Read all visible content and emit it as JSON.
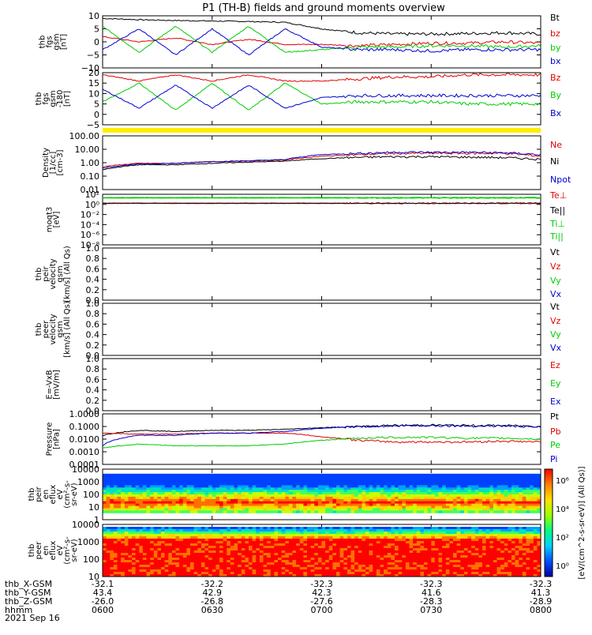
{
  "title": "P1 (TH-B) fields and ground moments overview",
  "date": "2021 Sep 16",
  "colorbar_label": "[eV/(cm^2-s-sr-eV)] (All Qs)]",
  "colorbar_ticks": [
    "10⁶",
    "10⁴",
    "10²",
    "10⁰"
  ],
  "time_axis": {
    "ticks": [
      "0600",
      "0630",
      "0700",
      "0730",
      "0800"
    ],
    "rows": [
      {
        "label": "thb_X-GSM",
        "values": [
          "-32.1",
          "-32.2",
          "-32.3",
          "-32.3",
          "-32.3"
        ]
      },
      {
        "label": "thb_Y-GSM",
        "values": [
          "43.4",
          "42.9",
          "42.3",
          "41.6",
          "41.3"
        ]
      },
      {
        "label": "thb_Z-GSM",
        "values": [
          "-26.0",
          "-26.8",
          "-27.6",
          "-28.3",
          "-28.9"
        ]
      },
      {
        "label": "hhmm",
        "values": [
          "0600",
          "0630",
          "0700",
          "0730",
          "0800"
        ]
      }
    ]
  },
  "chart_data": [
    {
      "type": "line",
      "ylabel": [
        "thb",
        "fgs",
        "gsm",
        "[nT]"
      ],
      "ylim": [
        -10,
        10
      ],
      "yticks": [
        "10",
        "5",
        "0",
        "−5",
        "−10"
      ],
      "x": [
        "0600",
        "0610",
        "0620",
        "0630",
        "0640",
        "0650",
        "0700",
        "0710",
        "0720",
        "0730",
        "0740",
        "0750",
        "0800"
      ],
      "series": [
        {
          "name": "Bt",
          "color": "#000000",
          "values": [
            9,
            8.5,
            8.2,
            8,
            7.8,
            7.5,
            5,
            3.5,
            3,
            3,
            3.2,
            3.5,
            3
          ]
        },
        {
          "name": "bz",
          "color": "#e00000",
          "values": [
            2,
            0,
            1.5,
            -1,
            1,
            -1,
            -1,
            -1.5,
            -1,
            -0.5,
            -0.5,
            0,
            -0.5
          ]
        },
        {
          "name": "by",
          "color": "#00cc00",
          "values": [
            6,
            -4,
            6,
            -4,
            6,
            -4,
            -3,
            -2,
            -2,
            -1.5,
            -1.5,
            -2,
            -1.5
          ]
        },
        {
          "name": "bx",
          "color": "#0000d0",
          "values": [
            -3,
            5,
            -5,
            5,
            -5,
            5,
            -2,
            -3,
            -3,
            -3.5,
            -3,
            -3,
            -3
          ]
        }
      ]
    },
    {
      "type": "line",
      "ylabel": [
        "thb",
        "fgs",
        "gsm",
        "-180",
        "[nT]"
      ],
      "ylim": [
        -5,
        20
      ],
      "yticks": [
        "20",
        "15",
        "10",
        "5",
        "0",
        "−5"
      ],
      "x": [
        "0600",
        "0610",
        "0620",
        "0630",
        "0640",
        "0650",
        "0700",
        "0710",
        "0720",
        "0730",
        "0740",
        "0750",
        "0800"
      ],
      "series": [
        {
          "name": "Bz",
          "color": "#e00000",
          "values": [
            19,
            16,
            19,
            16,
            19,
            16,
            16,
            17,
            18,
            18,
            19,
            19,
            19
          ]
        },
        {
          "name": "By",
          "color": "#00cc00",
          "values": [
            6,
            15,
            2,
            15,
            2,
            15,
            5,
            6,
            6,
            6,
            5,
            5,
            5
          ]
        },
        {
          "name": "Bx",
          "color": "#0000d0",
          "values": [
            12,
            3,
            14,
            3,
            14,
            3,
            8,
            9,
            9,
            9,
            9,
            9,
            9
          ]
        }
      ]
    },
    {
      "type": "line",
      "ylabel": [
        "Density",
        "[1/cc]",
        "[cm-3]"
      ],
      "scale": "log",
      "ylim": [
        0.01,
        100
      ],
      "yticks": [
        "100.00",
        "10.00",
        "1.00",
        "0.10",
        "0.01"
      ],
      "x": [
        "0600",
        "0610",
        "0620",
        "0630",
        "0640",
        "0650",
        "0700",
        "0710",
        "0720",
        "0730",
        "0740",
        "0750",
        "0800"
      ],
      "series": [
        {
          "name": "Ne",
          "color": "#e00000",
          "values": [
            0.5,
            0.9,
            0.9,
            1.2,
            1.3,
            1.6,
            3,
            4,
            5,
            5,
            5,
            5,
            3
          ]
        },
        {
          "name": "Ni",
          "color": "#000000",
          "values": [
            0.3,
            0.7,
            0.7,
            0.9,
            1.1,
            1.3,
            2,
            2.5,
            2.8,
            2.8,
            2.6,
            2.4,
            1.8
          ]
        },
        {
          "name": "Npot",
          "color": "#0000d0",
          "values": [
            0.4,
            0.8,
            0.9,
            1.2,
            1.4,
            1.7,
            4,
            5,
            6,
            6,
            6,
            5.5,
            4
          ]
        }
      ]
    },
    {
      "type": "line",
      "ylabel": [
        "moqt3",
        "[eV]"
      ],
      "scale": "log",
      "ylim": [
        1e-08,
        1000
      ],
      "yticks": [
        "10²",
        "10⁰",
        "10⁻²",
        "10⁻⁴",
        "10⁻⁶",
        "10⁻⁸"
      ],
      "x": [
        "0600",
        "0700",
        "0800"
      ],
      "series": [
        {
          "name": "Te⊥",
          "color": "#e00000",
          "values": [
            10,
            10,
            10
          ]
        },
        {
          "name": "Te||",
          "color": "#000000",
          "values": [
            12,
            12,
            12
          ]
        },
        {
          "name": "Ti⊥",
          "color": "#00cc00",
          "values": [
            200,
            200,
            200
          ]
        },
        {
          "name": "Ti||",
          "color": "#00cc00",
          "values": [
            150,
            150,
            150
          ]
        }
      ]
    },
    {
      "type": "line",
      "ylabel": [
        "thb",
        "peir",
        "velocity",
        "gsm",
        "[km/s] (All Qs)"
      ],
      "ylim": [
        0,
        1
      ],
      "yticks": [
        "1.0",
        "0.8",
        "0.6",
        "0.4",
        "0.2",
        "0.0"
      ],
      "legend": [
        "Vt",
        "Vz",
        "Vy",
        "Vx"
      ],
      "series": []
    },
    {
      "type": "line",
      "ylabel": [
        "thb",
        "peer",
        "velocity",
        "gsm",
        "[km/s] (All Qs)"
      ],
      "ylim": [
        0,
        1
      ],
      "yticks": [
        "1.0",
        "0.8",
        "0.6",
        "0.4",
        "0.2",
        "0.0"
      ],
      "legend": [
        "Vt",
        "Vz",
        "Vy",
        "Vx"
      ],
      "series": []
    },
    {
      "type": "line",
      "ylabel": [
        "E=-VxB",
        "[mV/m]"
      ],
      "ylim": [
        0,
        1
      ],
      "yticks": [
        "1.0",
        "0.8",
        "0.6",
        "0.4",
        "0.2",
        "0.0"
      ],
      "legend": [
        "Ez",
        "Ey",
        "Ex"
      ],
      "series": []
    },
    {
      "type": "line",
      "ylabel": [
        "Pressure",
        "[nPa]"
      ],
      "scale": "log",
      "ylim": [
        0.0001,
        1
      ],
      "yticks": [
        "1.0000",
        "0.1000",
        "0.0100",
        "0.0010",
        "0.0001"
      ],
      "x": [
        "0600",
        "0610",
        "0620",
        "0630",
        "0640",
        "0650",
        "0700",
        "0710",
        "0720",
        "0730",
        "0740",
        "0750",
        "0800"
      ],
      "series": [
        {
          "name": "Pt",
          "color": "#000000",
          "values": [
            0.02,
            0.05,
            0.04,
            0.05,
            0.05,
            0.06,
            0.08,
            0.1,
            0.12,
            0.13,
            0.12,
            0.12,
            0.1
          ]
        },
        {
          "name": "Pb",
          "color": "#e00000",
          "values": [
            0.03,
            0.025,
            0.025,
            0.03,
            0.03,
            0.03,
            0.015,
            0.008,
            0.006,
            0.006,
            0.006,
            0.007,
            0.006
          ]
        },
        {
          "name": "Pe",
          "color": "#00cc00",
          "values": [
            0.002,
            0.004,
            0.003,
            0.003,
            0.003,
            0.004,
            0.008,
            0.012,
            0.014,
            0.014,
            0.012,
            0.012,
            0.01
          ]
        },
        {
          "name": "Pi",
          "color": "#0000d0",
          "values": [
            0.003,
            0.02,
            0.02,
            0.03,
            0.03,
            0.04,
            0.07,
            0.1,
            0.11,
            0.12,
            0.11,
            0.11,
            0.09
          ]
        }
      ]
    },
    {
      "type": "heatmap",
      "ylabel": [
        "thb",
        "peir",
        "en",
        "eflux",
        "eV",
        "(cm²-s-",
        "sr-eV)"
      ],
      "ylim": [
        1,
        10000
      ],
      "yticks": [
        "10000",
        "1000",
        "100",
        "10",
        "1"
      ]
    },
    {
      "type": "heatmap",
      "ylabel": [
        "thb",
        "peer",
        "en",
        "eflux",
        "eV",
        "(cm²-s-",
        "sr-eV)"
      ],
      "ylim": [
        5,
        10000
      ],
      "yticks": [
        "10000",
        "1000",
        "100",
        "10"
      ]
    }
  ]
}
